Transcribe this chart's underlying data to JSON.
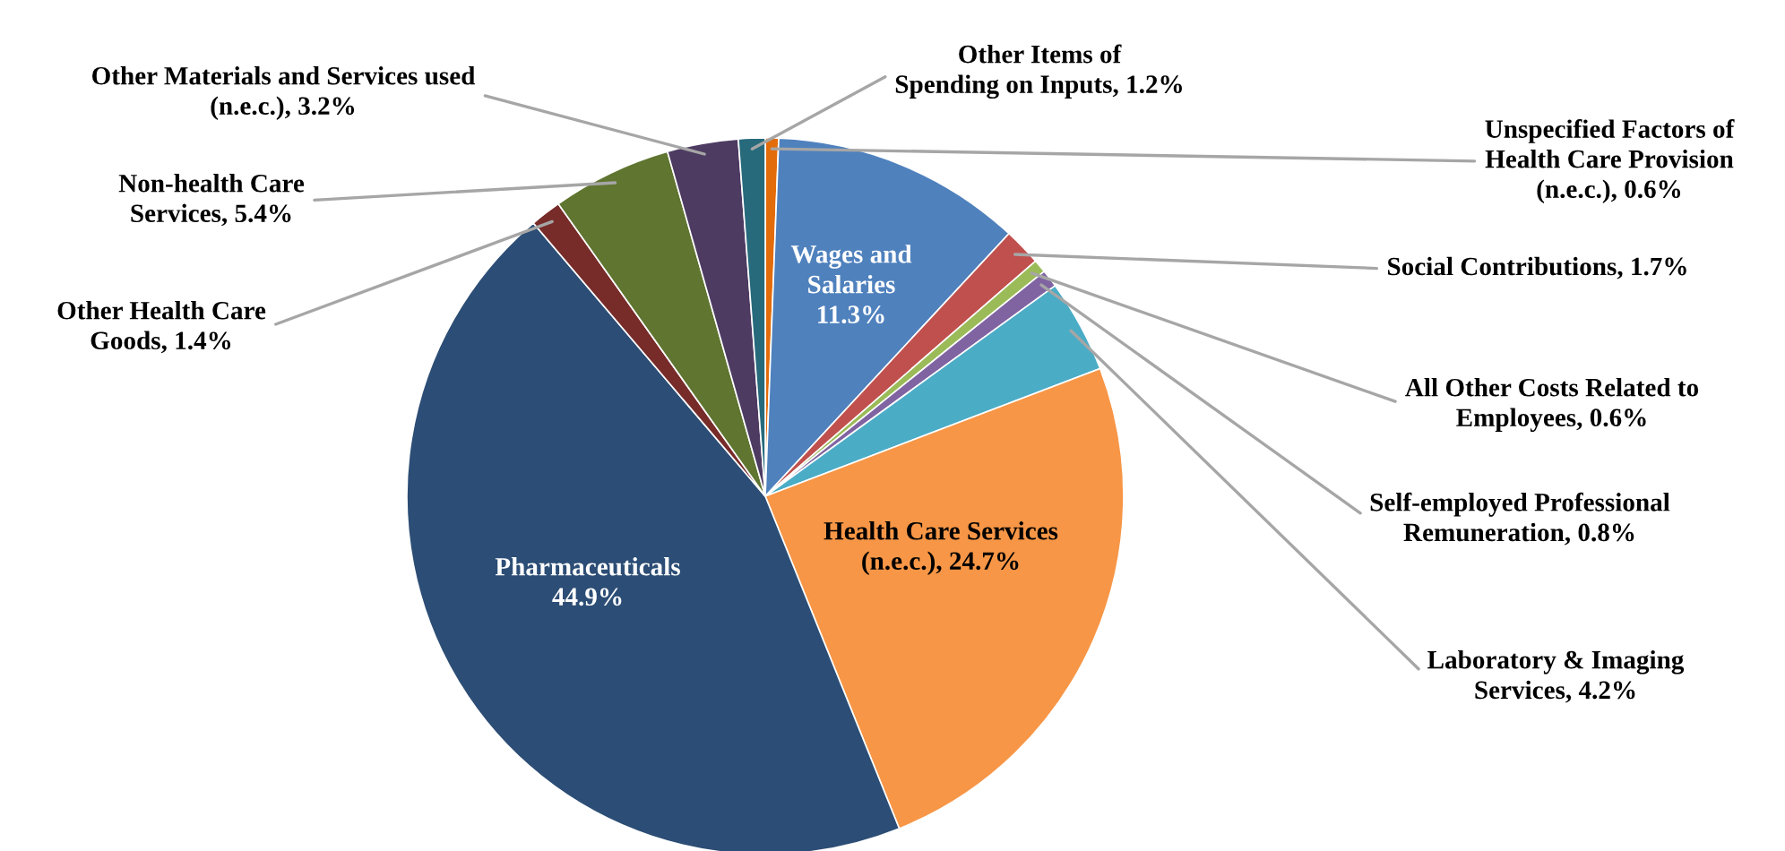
{
  "chart_data": {
    "type": "pie",
    "categories": [
      "Unspecified Factors of\nHealth Care Provision\n(n.e.c.)",
      "Wages and\nSalaries",
      "Social Contributions",
      "All Other Costs Related to\nEmployees",
      "Self-employed Professional\nRemuneration",
      "Laboratory & Imaging\nServices",
      "Health Care Services\n(n.e.c.)",
      "Pharmaceuticals",
      "Other Health Care\nGoods",
      "Non-health Care\nServices",
      "Other Materials and Services used\n(n.e.c.)",
      "Other Items of\nSpending on Inputs"
    ],
    "values": [
      0.6,
      11.3,
      1.7,
      0.6,
      0.8,
      4.2,
      24.7,
      44.9,
      1.4,
      5.4,
      3.2,
      1.2
    ],
    "value_labels": [
      "0.6%",
      "11.3%",
      "1.7%",
      "0.6%",
      "0.8%",
      "4.2%",
      "24.7%",
      "44.9%",
      "1.4%",
      "5.4%",
      "3.2%",
      "1.2%"
    ],
    "colors": [
      "#e36c0a",
      "#4f81bd",
      "#c0504d",
      "#9bbb59",
      "#8064a2",
      "#4bacc6",
      "#f79646",
      "#2c4d75",
      "#772c2a",
      "#5f7530",
      "#4d3b62",
      "#276a7c"
    ]
  }
}
